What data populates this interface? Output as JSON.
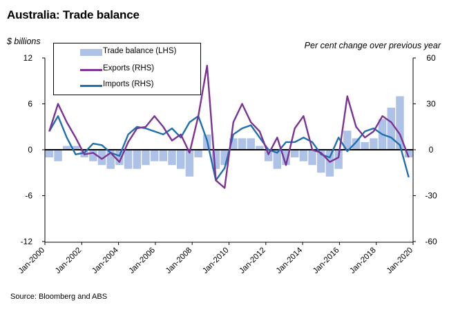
{
  "title": "Australia: Trade balance",
  "lhs_unit": "$ billions",
  "rhs_unit": "Per cent change over previous year",
  "source": "Source: Bloomberg and ABS",
  "colors": {
    "trade_balance": "#aec2e8",
    "exports": "#7b3294",
    "imports": "#1f6fae",
    "axis": "#000000"
  },
  "chart_data": {
    "type": "line",
    "title": "Australia: Trade balance",
    "xlabel": "",
    "ylabel_left": "$ billions",
    "ylabel_right": "Per cent change over previous year",
    "ylim_left": [
      -12,
      12
    ],
    "ylim_right": [
      -60,
      60
    ],
    "yticks_left": [
      12,
      6,
      0,
      -6,
      -12
    ],
    "yticks_right": [
      60,
      30,
      0,
      -30,
      -60
    ],
    "xticks": [
      "Jan-2000",
      "Jan-2002",
      "Jan-2004",
      "Jan-2006",
      "Jan-2008",
      "Jan-2010",
      "Jan-2012",
      "Jan-2014",
      "Jan-2016",
      "Jan-2018",
      "Jan-2020"
    ],
    "grid": false,
    "legend_position": "top-left",
    "x": [
      "Jan-2000",
      "Jul-2000",
      "Jan-2001",
      "Jul-2001",
      "Jan-2002",
      "Jul-2002",
      "Jan-2003",
      "Jul-2003",
      "Jan-2004",
      "Jul-2004",
      "Jan-2005",
      "Jul-2005",
      "Jan-2006",
      "Jul-2006",
      "Jan-2007",
      "Jul-2007",
      "Jan-2008",
      "Jul-2008",
      "Jan-2009",
      "Jul-2009",
      "Jan-2010",
      "Jul-2010",
      "Jan-2011",
      "Jul-2011",
      "Jan-2012",
      "Jul-2012",
      "Jan-2013",
      "Jul-2013",
      "Jan-2014",
      "Jul-2014",
      "Jan-2015",
      "Jul-2015",
      "Jan-2016",
      "Jul-2016",
      "Jan-2017",
      "Jul-2017",
      "Jan-2018",
      "Jul-2018",
      "Jan-2019",
      "Jul-2019",
      "Jan-2020",
      "Jul-2020"
    ],
    "series": [
      {
        "name": "Trade balance (LHS)",
        "axis": "left",
        "kind": "bar",
        "values": [
          -1.0,
          -1.5,
          0.5,
          0.5,
          -1.0,
          -1.5,
          -2.0,
          -2.5,
          -2.0,
          -2.5,
          -2.5,
          -2.0,
          -1.5,
          -1.5,
          -2.0,
          -2.5,
          -3.5,
          -1.0,
          2.0,
          -2.5,
          -2.0,
          1.5,
          1.5,
          1.5,
          0.5,
          -1.5,
          -2.5,
          -2.0,
          -1.0,
          -1.5,
          -2.0,
          -3.0,
          -3.5,
          -2.5,
          2.5,
          1.5,
          1.0,
          1.5,
          4.0,
          5.5,
          7.0,
          -1.0
        ]
      },
      {
        "name": "Exports (RHS)",
        "axis": "right",
        "kind": "line",
        "values": [
          12,
          30,
          18,
          8,
          -3,
          -2,
          -6,
          -2,
          -8,
          5,
          14,
          15,
          22,
          15,
          6,
          10,
          -2,
          22,
          55,
          -20,
          -25,
          18,
          30,
          18,
          12,
          -3,
          8,
          -10,
          14,
          22,
          0,
          -2,
          -8,
          -5,
          35,
          15,
          8,
          12,
          22,
          18,
          10,
          -5
        ]
      },
      {
        "name": "Imports (RHS)",
        "axis": "right",
        "kind": "line",
        "values": [
          12,
          22,
          8,
          -3,
          -2,
          4,
          3,
          -2,
          -4,
          10,
          15,
          14,
          12,
          10,
          14,
          8,
          18,
          22,
          6,
          -20,
          -12,
          10,
          14,
          16,
          8,
          0,
          -2,
          5,
          5,
          8,
          5,
          -3,
          -5,
          8,
          -1,
          5,
          12,
          14,
          10,
          8,
          3,
          -18
        ]
      }
    ]
  }
}
